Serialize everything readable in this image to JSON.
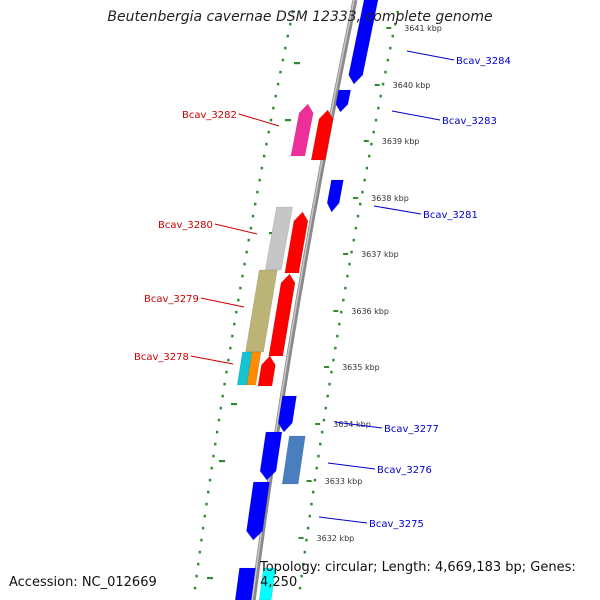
{
  "title": "Beutenbergia cavernae DSM 12333, complete genome",
  "footer": {
    "accession": "Accession: NC_012669",
    "topology": "Topology: circular; Length: 4,669,183 bp; Genes: 4,250"
  },
  "colors": {
    "backbone": "#888888",
    "dash": "#2e8b2e",
    "label_red": "#cc0000",
    "label_blue": "#0000cc",
    "forward_gene": "#ff0000",
    "reverse_gene": "#0000ff"
  },
  "ticks": [
    {
      "label": "3641 kbp"
    },
    {
      "label": "3640 kbp"
    },
    {
      "label": "3639 kbp"
    },
    {
      "label": "3638 kbp"
    },
    {
      "label": "3637 kbp"
    },
    {
      "label": "3636 kbp"
    },
    {
      "label": "3635 kbp"
    },
    {
      "label": "3634 kbp"
    },
    {
      "label": "3633 kbp"
    },
    {
      "label": "3632 kbp"
    }
  ],
  "gene_labels_left": [
    "Bcav_3282",
    "Bcav_3280",
    "Bcav_3279",
    "Bcav_3278"
  ],
  "gene_labels_right": [
    "Bcav_3284",
    "Bcav_3283",
    "Bcav_3281",
    "Bcav_3277",
    "Bcav_3276",
    "Bcav_3275"
  ]
}
